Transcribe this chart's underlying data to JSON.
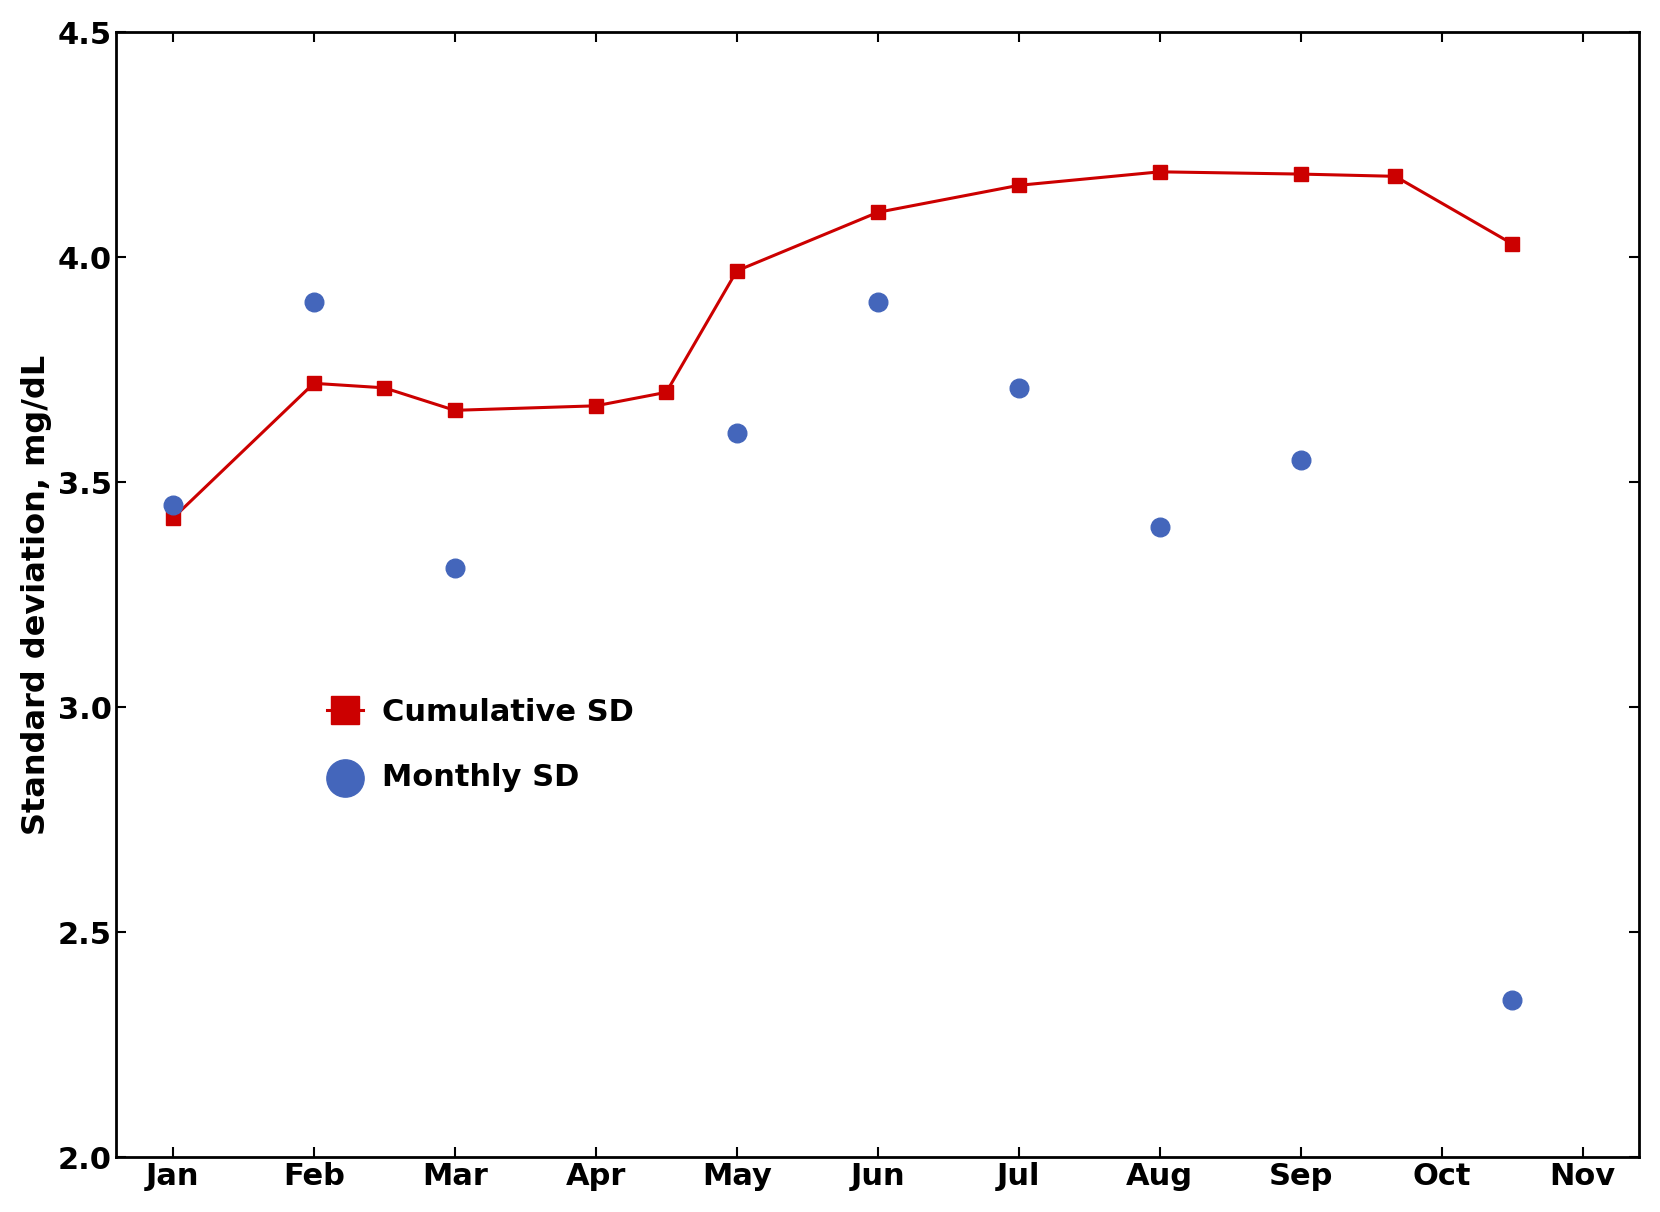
{
  "cumulative_sd_xpts": [
    0,
    1,
    1.5,
    2,
    3,
    3.5,
    4,
    5,
    6,
    7,
    8,
    8.67,
    9.5
  ],
  "cumulative_sd_ypts": [
    3.42,
    3.72,
    3.71,
    3.66,
    3.67,
    3.7,
    3.97,
    4.1,
    4.16,
    4.19,
    4.185,
    4.18,
    4.03
  ],
  "monthly_sd_xpts": [
    0,
    1,
    2,
    4,
    5,
    6,
    7,
    8,
    9.5
  ],
  "monthly_sd_ypts": [
    3.45,
    3.9,
    3.31,
    3.61,
    3.9,
    3.71,
    3.4,
    3.55,
    2.35
  ],
  "xtick_labels": [
    "Jan",
    "Feb",
    "Mar",
    "Apr",
    "May",
    "Jun",
    "Jul",
    "Aug",
    "Sep",
    "Oct",
    "Nov"
  ],
  "xtick_positions": [
    0,
    1,
    2,
    3,
    4,
    5,
    6,
    7,
    8,
    9,
    10
  ],
  "ylim": [
    2.0,
    4.5
  ],
  "yticks": [
    2.0,
    2.5,
    3.0,
    3.5,
    4.0,
    4.5
  ],
  "ylabel": "Standard deviation, mg/dL",
  "cumulative_color": "#CC0000",
  "monthly_color": "#4466BB",
  "legend_cumulative": "Cumulative SD",
  "legend_monthly": "Monthly SD",
  "marker_size_square": 10,
  "marker_size_circle": 180,
  "line_width": 2.2,
  "font_size_ticks": 22,
  "font_size_ylabel": 23,
  "font_size_legend": 22,
  "xlim_left": -0.4,
  "xlim_right": 10.4
}
